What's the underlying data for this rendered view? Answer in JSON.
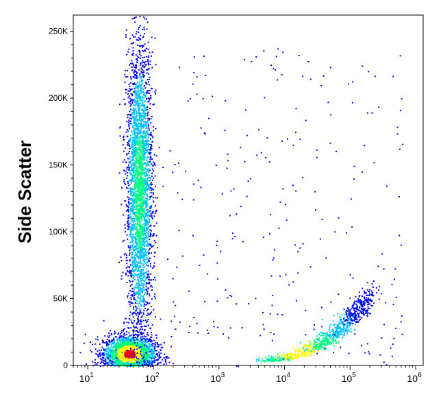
{
  "chart_data": {
    "type": "scatter",
    "ylabel": "Side Scatter",
    "xlabel": "",
    "x_scale": "log",
    "xlim": [
      6,
      1300000
    ],
    "ylim": [
      0,
      262144
    ],
    "x_ticks": [
      {
        "value": 10,
        "base": "10",
        "exp": "1"
      },
      {
        "value": 100,
        "base": "10",
        "exp": "2"
      },
      {
        "value": 1000,
        "base": "10",
        "exp": "3"
      },
      {
        "value": 10000,
        "base": "10",
        "exp": "4"
      },
      {
        "value": 100000,
        "base": "10",
        "exp": "5"
      },
      {
        "value": 1000000,
        "base": "10",
        "exp": "6"
      }
    ],
    "y_ticks": [
      {
        "value": 0,
        "label": "0"
      },
      {
        "value": 50000,
        "label": "50K"
      },
      {
        "value": 100000,
        "label": "100K"
      },
      {
        "value": 150000,
        "label": "150K"
      },
      {
        "value": 200000,
        "label": "200K"
      },
      {
        "value": 250000,
        "label": "250K"
      }
    ],
    "colormap": [
      "#0000ff",
      "#00c0ff",
      "#00ff80",
      "#ffff00",
      "#ff0000"
    ],
    "clusters": [
      {
        "name": "low-left-dense",
        "x_log_center": 1.63,
        "x_log_sd": 0.2,
        "y_center": 9000,
        "y_sd": 7000,
        "n": 2200
      },
      {
        "name": "vertical-column",
        "x_log_center": 1.78,
        "x_log_sd": 0.1,
        "y_center": 130000,
        "y_sd": 55000,
        "n": 3200
      },
      {
        "name": "right-curve",
        "x_log_start": 3.6,
        "x_log_end": 5.3,
        "y_start": 3000,
        "y_end": 50000,
        "n": 900
      },
      {
        "name": "sparse-background",
        "n": 260
      }
    ]
  }
}
